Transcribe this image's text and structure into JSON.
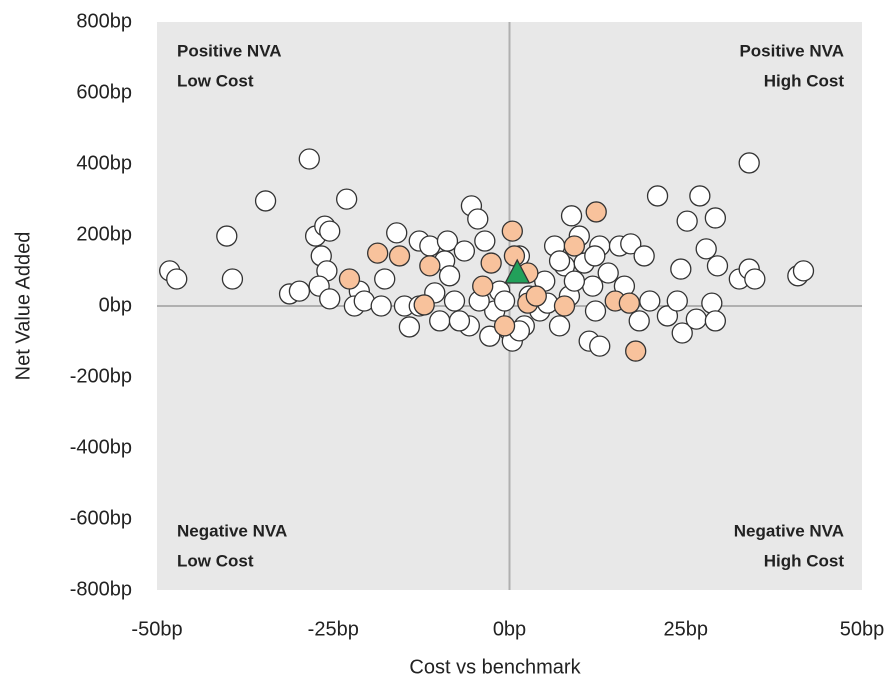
{
  "chart_data": {
    "type": "scatter",
    "xlabel": "Cost vs benchmark",
    "ylabel": "Net Value Added",
    "xlim": [
      -50,
      50
    ],
    "ylim": [
      -800,
      800
    ],
    "xticks": [
      {
        "value": -50,
        "label": "-50bp"
      },
      {
        "value": -25,
        "label": "-25bp"
      },
      {
        "value": 0,
        "label": "0bp"
      },
      {
        "value": 25,
        "label": "25bp"
      },
      {
        "value": 50,
        "label": "50bp"
      }
    ],
    "yticks": [
      {
        "value": -800,
        "label": "-800bp"
      },
      {
        "value": -600,
        "label": "-600bp"
      },
      {
        "value": -400,
        "label": "-400bp"
      },
      {
        "value": -200,
        "label": "-200bp"
      },
      {
        "value": 0,
        "label": "0bp"
      },
      {
        "value": 200,
        "label": "200bp"
      },
      {
        "value": 400,
        "label": "400bp"
      },
      {
        "value": 600,
        "label": "600bp"
      },
      {
        "value": 800,
        "label": "800bp"
      }
    ],
    "annotations": [
      {
        "lines": [
          "Positive NVA",
          "Low Cost"
        ],
        "corner": "top-left"
      },
      {
        "lines": [
          "Positive NVA",
          "High Cost"
        ],
        "corner": "top-right"
      },
      {
        "lines": [
          "Negative NVA",
          "Low Cost"
        ],
        "corner": "bottom-left"
      },
      {
        "lines": [
          "Negative NVA",
          "High Cost"
        ],
        "corner": "bottom-right"
      }
    ],
    "series": [
      {
        "color": "#ffffff",
        "marker": "circle",
        "x": [
          -48.2,
          -47.2,
          -40.1,
          -39.3,
          -34.6,
          -28.4,
          -31.2,
          -29.8,
          -27.5,
          -26.2,
          -25.5,
          -26.7,
          -25.9,
          -27,
          -25.5,
          -23.1,
          -21.3,
          -22,
          -20.6,
          -17.7,
          -16.0,
          -18.2,
          -14.9,
          -14.2,
          -12.8,
          -11.3,
          -10.6,
          -9.9,
          -9.2,
          -8.5,
          -7.8,
          -8.8,
          -6.4,
          -5.7,
          -5.4,
          -4.5,
          -3.5,
          -2.8,
          -2.1,
          -1.4,
          -0.7,
          0,
          0.4,
          1.4,
          2.1,
          2.8,
          4.3,
          5.0,
          6.4,
          7.1,
          7.8,
          8.5,
          8.8,
          9.9,
          10.6,
          11.8,
          12.2,
          11.3,
          12.8,
          12.8,
          14.0,
          15.6,
          16.3,
          17.2,
          18.4,
          19.1,
          19.9,
          21.0,
          22.4,
          23.8,
          24.3,
          24.5,
          25.2,
          26.5,
          27,
          27.9,
          28.7,
          29.2,
          29.5,
          29.2,
          32.6,
          34.0,
          34.0,
          34.8,
          40.9,
          41.7,
          -12.8,
          -7.1,
          -4.3,
          7.1,
          9.2,
          12.1,
          5.4,
          1.4
        ],
        "values": [
          99,
          76,
          197,
          76,
          296,
          414,
          34,
          42,
          197,
          225,
          211,
          141,
          99,
          56,
          20,
          301,
          42,
          0,
          14,
          76,
          206,
          0,
          0,
          -59,
          183,
          169,
          37,
          -42,
          127,
          85,
          14,
          183,
          155,
          -56,
          282,
          245,
          183,
          -85,
          -14,
          42,
          14,
          -70,
          -99,
          141,
          -56,
          28,
          -14,
          70,
          169,
          -56,
          113,
          28,
          254,
          197,
          121,
          56,
          -14,
          -99,
          -113,
          169,
          93,
          169,
          56,
          175,
          -42,
          141,
          14,
          310,
          -28,
          14,
          104,
          -76,
          239,
          -37,
          310,
          161,
          8,
          248,
          113,
          -42,
          76,
          403,
          104,
          76,
          85,
          99,
          0,
          -42,
          14,
          127,
          70,
          141,
          8,
          -70
        ]
      },
      {
        "color": "#f8c29c",
        "marker": "circle",
        "x": [
          -18.7,
          -15.6,
          -11.3,
          -22.7,
          -12.1,
          -2.6,
          -3.8,
          -0.7,
          0.4,
          0.7,
          2.6,
          2.6,
          3.8,
          7.8,
          9.2,
          12.3,
          15.0,
          17.0,
          17.9
        ],
        "values": [
          149,
          141,
          113,
          76,
          3,
          121,
          56,
          -56,
          211,
          141,
          93,
          8,
          28,
          0,
          169,
          265,
          14,
          8,
          -127
        ]
      },
      {
        "color": "#22a05a",
        "marker": "triangle",
        "x": [
          1.1
        ],
        "values": [
          93
        ]
      }
    ]
  }
}
